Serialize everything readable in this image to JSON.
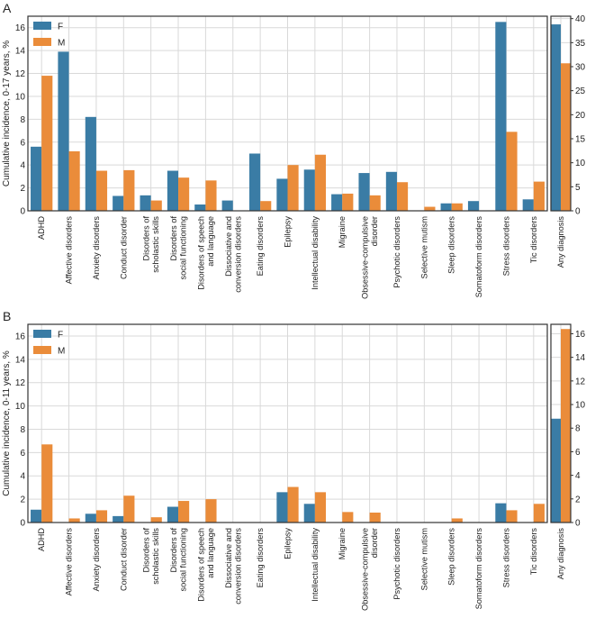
{
  "colors": {
    "F": "#3a7ca5",
    "M": "#ea8c3a"
  },
  "chart_data": [
    {
      "type": "bar",
      "panel": "A",
      "ylabel": "Cumulative incidence, 0-17 years, %",
      "ylim": [
        0,
        17
      ],
      "yticks": [
        0,
        2,
        4,
        6,
        8,
        10,
        12,
        14,
        16
      ],
      "legend": {
        "placement": "top-left",
        "entries": [
          "F",
          "M"
        ]
      },
      "categories": [
        "ADHD",
        "Affective disorders",
        "Anxiety disorders",
        "Conduct disorder",
        "Disorders of|scholastic skills",
        "Disorders of|social functioning",
        "Disorders of speech|and language",
        "Dissociative and|conversion disorders",
        "Eating disorders",
        "Epilepsy",
        "Intellectual disability",
        "Migraine",
        "Obsessive-compulsive|disorder",
        "Psychotic disorders",
        "Selective mutism",
        "Sleep disorders",
        "Somatoform disorders",
        "Stress disorders",
        "Tic disorders"
      ],
      "series": [
        {
          "name": "F",
          "values": [
            5.6,
            13.9,
            8.2,
            1.3,
            1.35,
            3.5,
            0.55,
            0.9,
            5.0,
            2.8,
            3.6,
            1.45,
            3.3,
            3.4,
            0.0,
            0.65,
            0.85,
            16.5,
            1.0
          ]
        },
        {
          "name": "M",
          "values": [
            11.8,
            5.2,
            3.5,
            3.55,
            0.9,
            2.9,
            2.65,
            0.0,
            0.85,
            4.0,
            4.9,
            1.5,
            1.35,
            2.5,
            0.35,
            0.65,
            0.0,
            6.9,
            2.55
          ]
        }
      ],
      "right": {
        "category": "Any diagnosis",
        "ylim": [
          0,
          40.5
        ],
        "yticks": [
          0,
          5,
          10,
          15,
          20,
          25,
          30,
          35,
          40
        ],
        "values": {
          "F": 38.8,
          "M": 30.7
        }
      }
    },
    {
      "type": "bar",
      "panel": "B",
      "ylabel": "Cumulative incidence, 0-11 years, %",
      "ylim": [
        0,
        17
      ],
      "yticks": [
        0,
        2,
        4,
        6,
        8,
        10,
        12,
        14,
        16
      ],
      "legend": {
        "placement": "top-left",
        "entries": [
          "F",
          "M"
        ]
      },
      "categories": [
        "ADHD",
        "Affective disorders",
        "Anxiety disorders",
        "Conduct disorder",
        "Disorders of|scholastic skills",
        "Disorders of|social functioning",
        "Disorders of speech|and language",
        "Dissociative and|conversion disorders",
        "Eating disorders",
        "Epilepsy",
        "Intellectual disability",
        "Migraine",
        "Obsessive-compulsive|disorder",
        "Psychotic disorders",
        "Selective mutism",
        "Sleep disorders",
        "Somatoform disorders",
        "Stress disorders",
        "Tic disorders"
      ],
      "series": [
        {
          "name": "F",
          "values": [
            1.1,
            0.0,
            0.75,
            0.55,
            0.0,
            1.35,
            0.0,
            0.0,
            0.0,
            2.6,
            1.6,
            0.0,
            0.0,
            0.0,
            0.0,
            0.0,
            0.0,
            1.65,
            0.0
          ]
        },
        {
          "name": "M",
          "values": [
            6.7,
            0.35,
            1.05,
            2.3,
            0.45,
            1.85,
            2.0,
            0.0,
            0.0,
            3.05,
            2.6,
            0.9,
            0.85,
            0.0,
            0.0,
            0.35,
            0.0,
            1.05,
            1.6
          ]
        }
      ],
      "right": {
        "category": "Any diagnosis",
        "ylim": [
          0,
          16.8
        ],
        "yticks": [
          0,
          2,
          4,
          6,
          8,
          10,
          12,
          14,
          16
        ],
        "values": {
          "F": 8.8,
          "M": 16.4
        }
      }
    }
  ]
}
